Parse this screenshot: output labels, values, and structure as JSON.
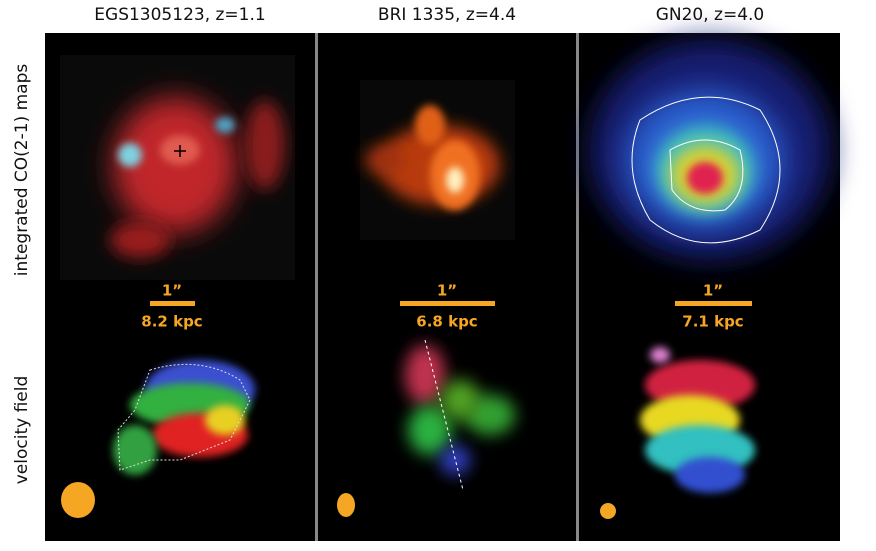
{
  "columns": [
    {
      "title": "EGS1305123, z=1.1",
      "scale_label": "1”",
      "scale_size": "8.2 kpc"
    },
    {
      "title": "BRI 1335, z=4.4",
      "scale_label": "1”",
      "scale_size": "6.8 kpc"
    },
    {
      "title": "GN20, z=4.0",
      "scale_label": "1”",
      "scale_size": "7.1 kpc"
    }
  ],
  "rows": [
    "integrated CO(2-1) maps",
    "velocity field"
  ]
}
